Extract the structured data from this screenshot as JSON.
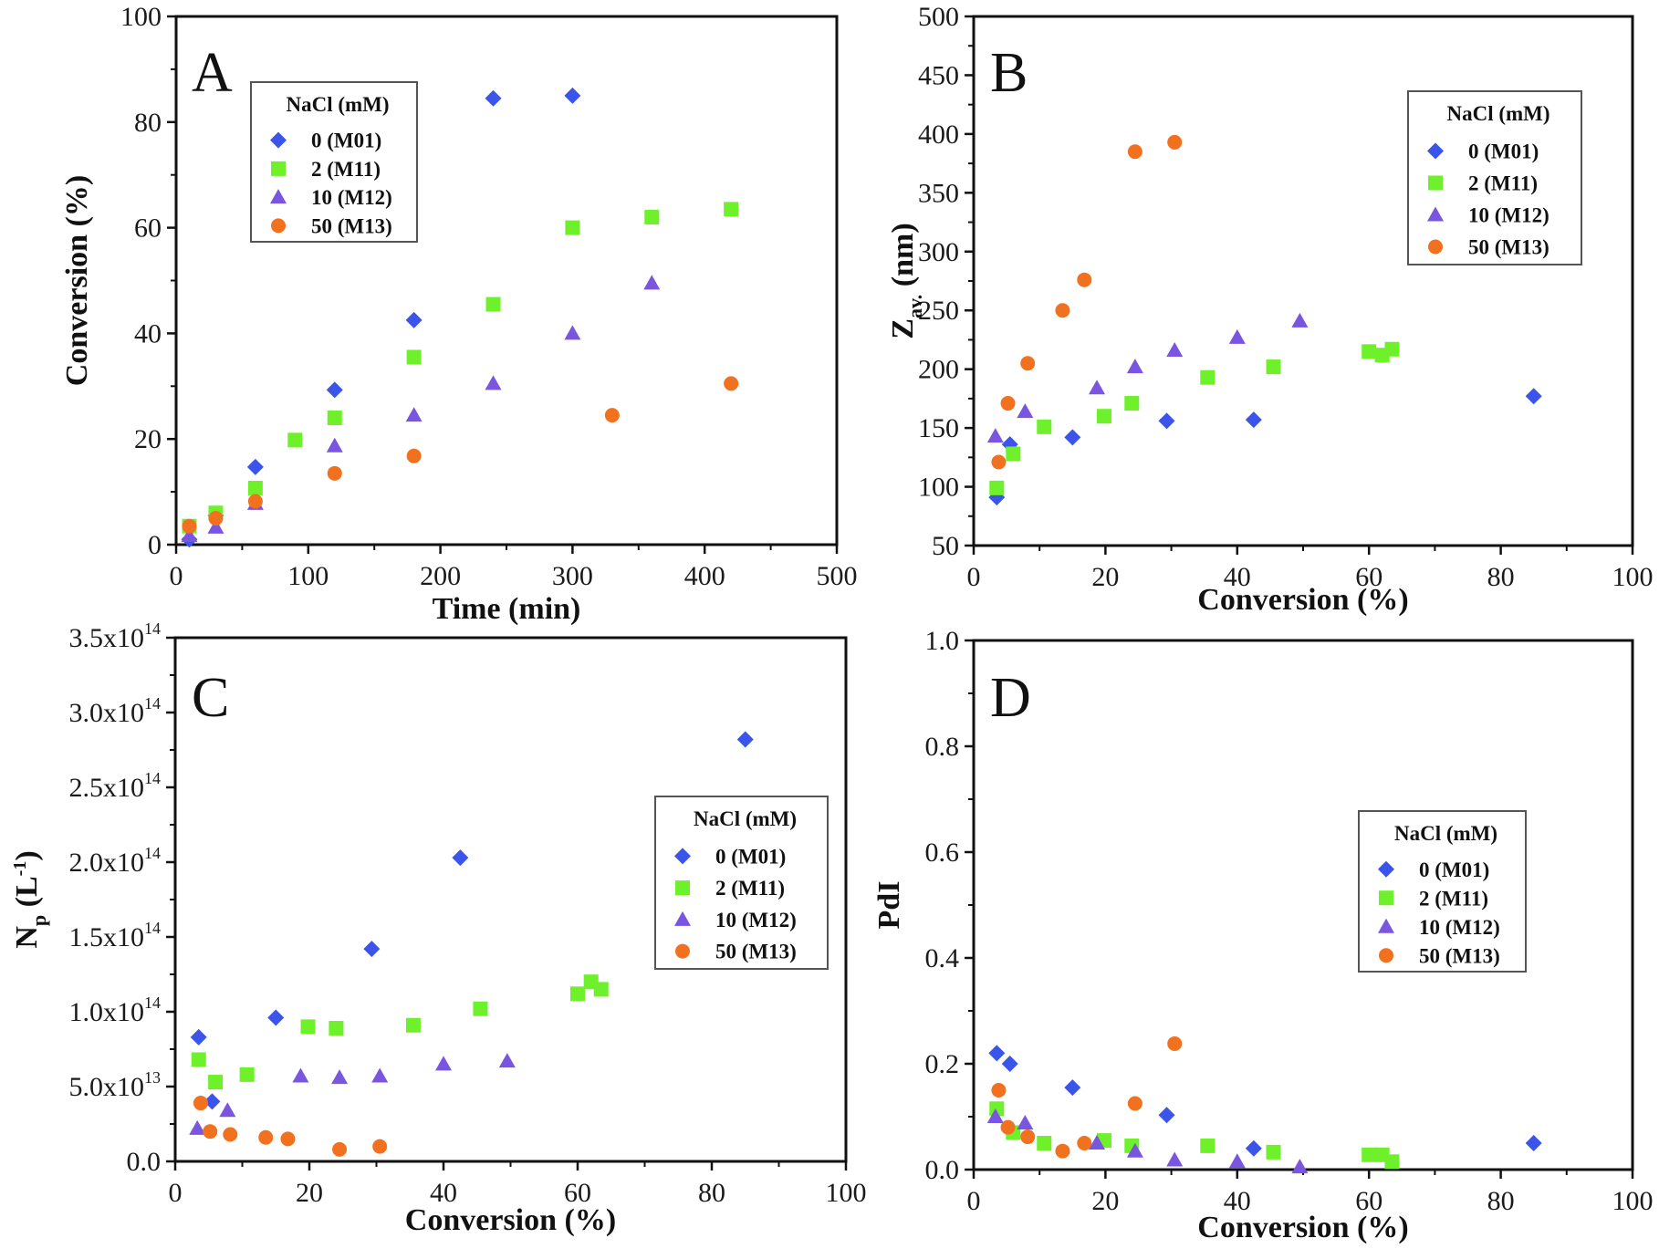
{
  "figure": {
    "legend_title": "NaCl (mM)",
    "series_styles": [
      {
        "name": "0 (M01)",
        "marker": "diamond",
        "color": "#3b55ea"
      },
      {
        "name": "2 (M11)",
        "marker": "square",
        "color": "#6ef02a"
      },
      {
        "name": "10 (M12)",
        "marker": "triangle",
        "color": "#7a55e0"
      },
      {
        "name": "50 (M13)",
        "marker": "circle",
        "color": "#f2711f"
      }
    ]
  },
  "chart_data": [
    {
      "id": "A",
      "type": "scatter",
      "panel_label": "A",
      "title": "",
      "xlabel": "Time (min)",
      "ylabel": "Conversion (%)",
      "xlim": [
        0,
        500
      ],
      "ylim": [
        0,
        100
      ],
      "xticks": [
        0,
        100,
        200,
        300,
        400,
        500
      ],
      "yticks": [
        0,
        20,
        40,
        60,
        80,
        100
      ],
      "xtick_labels": [
        "0",
        "100",
        "200",
        "300",
        "400",
        "500"
      ],
      "ytick_labels": [
        "0",
        "20",
        "40",
        "60",
        "80",
        "100"
      ],
      "grid": false,
      "legend_position": "top-left",
      "series": [
        {
          "name": "0 (M01)",
          "x": [
            10,
            30,
            60,
            120,
            180,
            240,
            300
          ],
          "y": [
            1,
            5.5,
            14.7,
            29.3,
            42.5,
            84.5,
            85
          ]
        },
        {
          "name": "2 (M11)",
          "x": [
            10,
            30,
            60,
            90,
            120,
            180,
            240,
            300,
            360,
            420
          ],
          "y": [
            3.5,
            6,
            10.7,
            19.8,
            24,
            35.5,
            45.5,
            60,
            62,
            63.5
          ]
        },
        {
          "name": "10 (M12)",
          "x": [
            10,
            30,
            60,
            120,
            180,
            240,
            300,
            360
          ],
          "y": [
            1.7,
            3.3,
            7.8,
            18.7,
            24.5,
            30.5,
            40,
            49.5
          ]
        },
        {
          "name": "50 (M13)",
          "x": [
            10,
            30,
            60,
            120,
            180,
            330,
            420
          ],
          "y": [
            3.5,
            5,
            8.2,
            13.5,
            16.8,
            24.5,
            30.5
          ]
        }
      ]
    },
    {
      "id": "B",
      "type": "scatter",
      "panel_label": "B",
      "title": "",
      "xlabel": "Conversion (%)",
      "ylabel_main": "Z",
      "ylabel_sub": "av.",
      "ylabel_unit": " (nm)",
      "xlim": [
        0,
        100
      ],
      "ylim": [
        50,
        500
      ],
      "xticks": [
        0,
        20,
        40,
        60,
        80,
        100
      ],
      "yticks": [
        50,
        100,
        150,
        200,
        250,
        300,
        350,
        400,
        450,
        500
      ],
      "xtick_labels": [
        "0",
        "20",
        "40",
        "60",
        "80",
        "100"
      ],
      "ytick_labels": [
        "50",
        "100",
        "150",
        "200",
        "250",
        "300",
        "350",
        "400",
        "450",
        "500"
      ],
      "grid": false,
      "legend_position": "top-right",
      "series": [
        {
          "name": "0 (M01)",
          "x": [
            3.5,
            5.5,
            15,
            29.3,
            42.5,
            85
          ],
          "y": [
            91,
            136,
            142,
            156,
            157,
            177
          ]
        },
        {
          "name": "2 (M11)",
          "x": [
            3.5,
            6,
            10.7,
            19.8,
            24,
            35.5,
            45.5,
            60,
            62,
            63.5
          ],
          "y": [
            99,
            128,
            151,
            160,
            171,
            193,
            202,
            215,
            212,
            217
          ]
        },
        {
          "name": "10 (M12)",
          "x": [
            3.3,
            7.8,
            18.7,
            24.5,
            30.5,
            40,
            49.5
          ],
          "y": [
            143,
            164,
            184,
            202,
            216,
            227,
            241
          ]
        },
        {
          "name": "50 (M13)",
          "x": [
            3.8,
            5.2,
            8.2,
            13.5,
            16.8,
            24.5,
            30.5
          ],
          "y": [
            121,
            171,
            205,
            250,
            276,
            385,
            393
          ]
        }
      ]
    },
    {
      "id": "C",
      "type": "scatter",
      "panel_label": "C",
      "title": "",
      "xlabel": "Conversion (%)",
      "ylabel_main": "N",
      "ylabel_sub": "p",
      "ylabel_unit": " (L",
      "ylabel_sup": "-1",
      "ylabel_close": ")",
      "y_unit_multiplier": 100000000000000.0,
      "xlim": [
        0,
        100
      ],
      "ylim": [
        0,
        350000000000000.0
      ],
      "xticks": [
        0,
        20,
        40,
        60,
        80,
        100
      ],
      "yticks": [
        0,
        50000000000000.0,
        100000000000000.0,
        150000000000000.0,
        200000000000000.0,
        250000000000000.0,
        300000000000000.0,
        350000000000000.0
      ],
      "xtick_labels": [
        "0",
        "20",
        "40",
        "60",
        "80",
        "100"
      ],
      "ytick_labels": [
        {
          "mant": "0.0",
          "exp": ""
        },
        {
          "mant": "5.0x10",
          "exp": "13"
        },
        {
          "mant": "1.0x10",
          "exp": "14"
        },
        {
          "mant": "1.5x10",
          "exp": "14"
        },
        {
          "mant": "2.0x10",
          "exp": "14"
        },
        {
          "mant": "2.5x10",
          "exp": "14"
        },
        {
          "mant": "3.0x10",
          "exp": "14"
        },
        {
          "mant": "3.5x10",
          "exp": "14"
        }
      ],
      "grid": false,
      "legend_position": "right",
      "series": [
        {
          "name": "0 (M01)",
          "x": [
            3.5,
            5.5,
            15,
            29.3,
            42.5,
            85
          ],
          "y": [
            83000000000000.0,
            40000000000000.0,
            96000000000000.0,
            142000000000000.0,
            203000000000000.0,
            282000000000000.0
          ]
        },
        {
          "name": "2 (M11)",
          "x": [
            3.5,
            6,
            10.7,
            19.8,
            24,
            35.5,
            45.5,
            60,
            62,
            63.5
          ],
          "y": [
            68000000000000.0,
            53000000000000.0,
            58000000000000.0,
            90000000000000.0,
            89000000000000.0,
            91000000000000.0,
            102000000000000.0,
            112000000000000.0,
            120000000000000.0,
            115000000000000.0
          ]
        },
        {
          "name": "10 (M12)",
          "x": [
            3.3,
            7.8,
            18.7,
            24.5,
            30.5,
            40,
            49.5
          ],
          "y": [
            22000000000000.0,
            34000000000000.0,
            57000000000000.0,
            56000000000000.0,
            57000000000000.0,
            65000000000000.0,
            67000000000000.0
          ]
        },
        {
          "name": "50 (M13)",
          "x": [
            3.8,
            5.2,
            8.2,
            13.5,
            16.8,
            24.5,
            30.5
          ],
          "y": [
            39000000000000.0,
            20000000000000.0,
            18000000000000.0,
            16000000000000.0,
            15000000000000.0,
            8000000000000.0,
            10000000000000.0
          ]
        }
      ]
    },
    {
      "id": "D",
      "type": "scatter",
      "panel_label": "D",
      "title": "",
      "xlabel": "Conversion (%)",
      "ylabel": "PdI",
      "xlim": [
        0,
        100
      ],
      "ylim": [
        0,
        1.0
      ],
      "xticks": [
        0,
        20,
        40,
        60,
        80,
        100
      ],
      "yticks": [
        0,
        0.2,
        0.4,
        0.6,
        0.8,
        1.0
      ],
      "xtick_labels": [
        "0",
        "20",
        "40",
        "60",
        "80",
        "100"
      ],
      "ytick_labels": [
        "0.0",
        "0.2",
        "0.4",
        "0.6",
        "0.8",
        "1.0"
      ],
      "grid": false,
      "legend_position": "right",
      "series": [
        {
          "name": "0 (M01)",
          "x": [
            3.5,
            5.5,
            15,
            29.3,
            42.5,
            85
          ],
          "y": [
            0.22,
            0.2,
            0.155,
            0.103,
            0.04,
            0.05
          ]
        },
        {
          "name": "2 (M11)",
          "x": [
            3.5,
            6,
            10.7,
            19.8,
            24,
            35.5,
            45.5,
            60,
            62,
            63.5
          ],
          "y": [
            0.115,
            0.07,
            0.05,
            0.055,
            0.045,
            0.045,
            0.033,
            0.028,
            0.028,
            0.015
          ]
        },
        {
          "name": "10 (M12)",
          "x": [
            3.3,
            7.8,
            18.7,
            24.5,
            30.5,
            40,
            49.5
          ],
          "y": [
            0.1,
            0.088,
            0.05,
            0.035,
            0.018,
            0.015,
            0.005
          ]
        },
        {
          "name": "50 (M13)",
          "x": [
            3.8,
            5.2,
            8.2,
            13.5,
            16.8,
            24.5,
            30.5
          ],
          "y": [
            0.15,
            0.08,
            0.062,
            0.035,
            0.05,
            0.125,
            0.238
          ]
        }
      ]
    }
  ]
}
